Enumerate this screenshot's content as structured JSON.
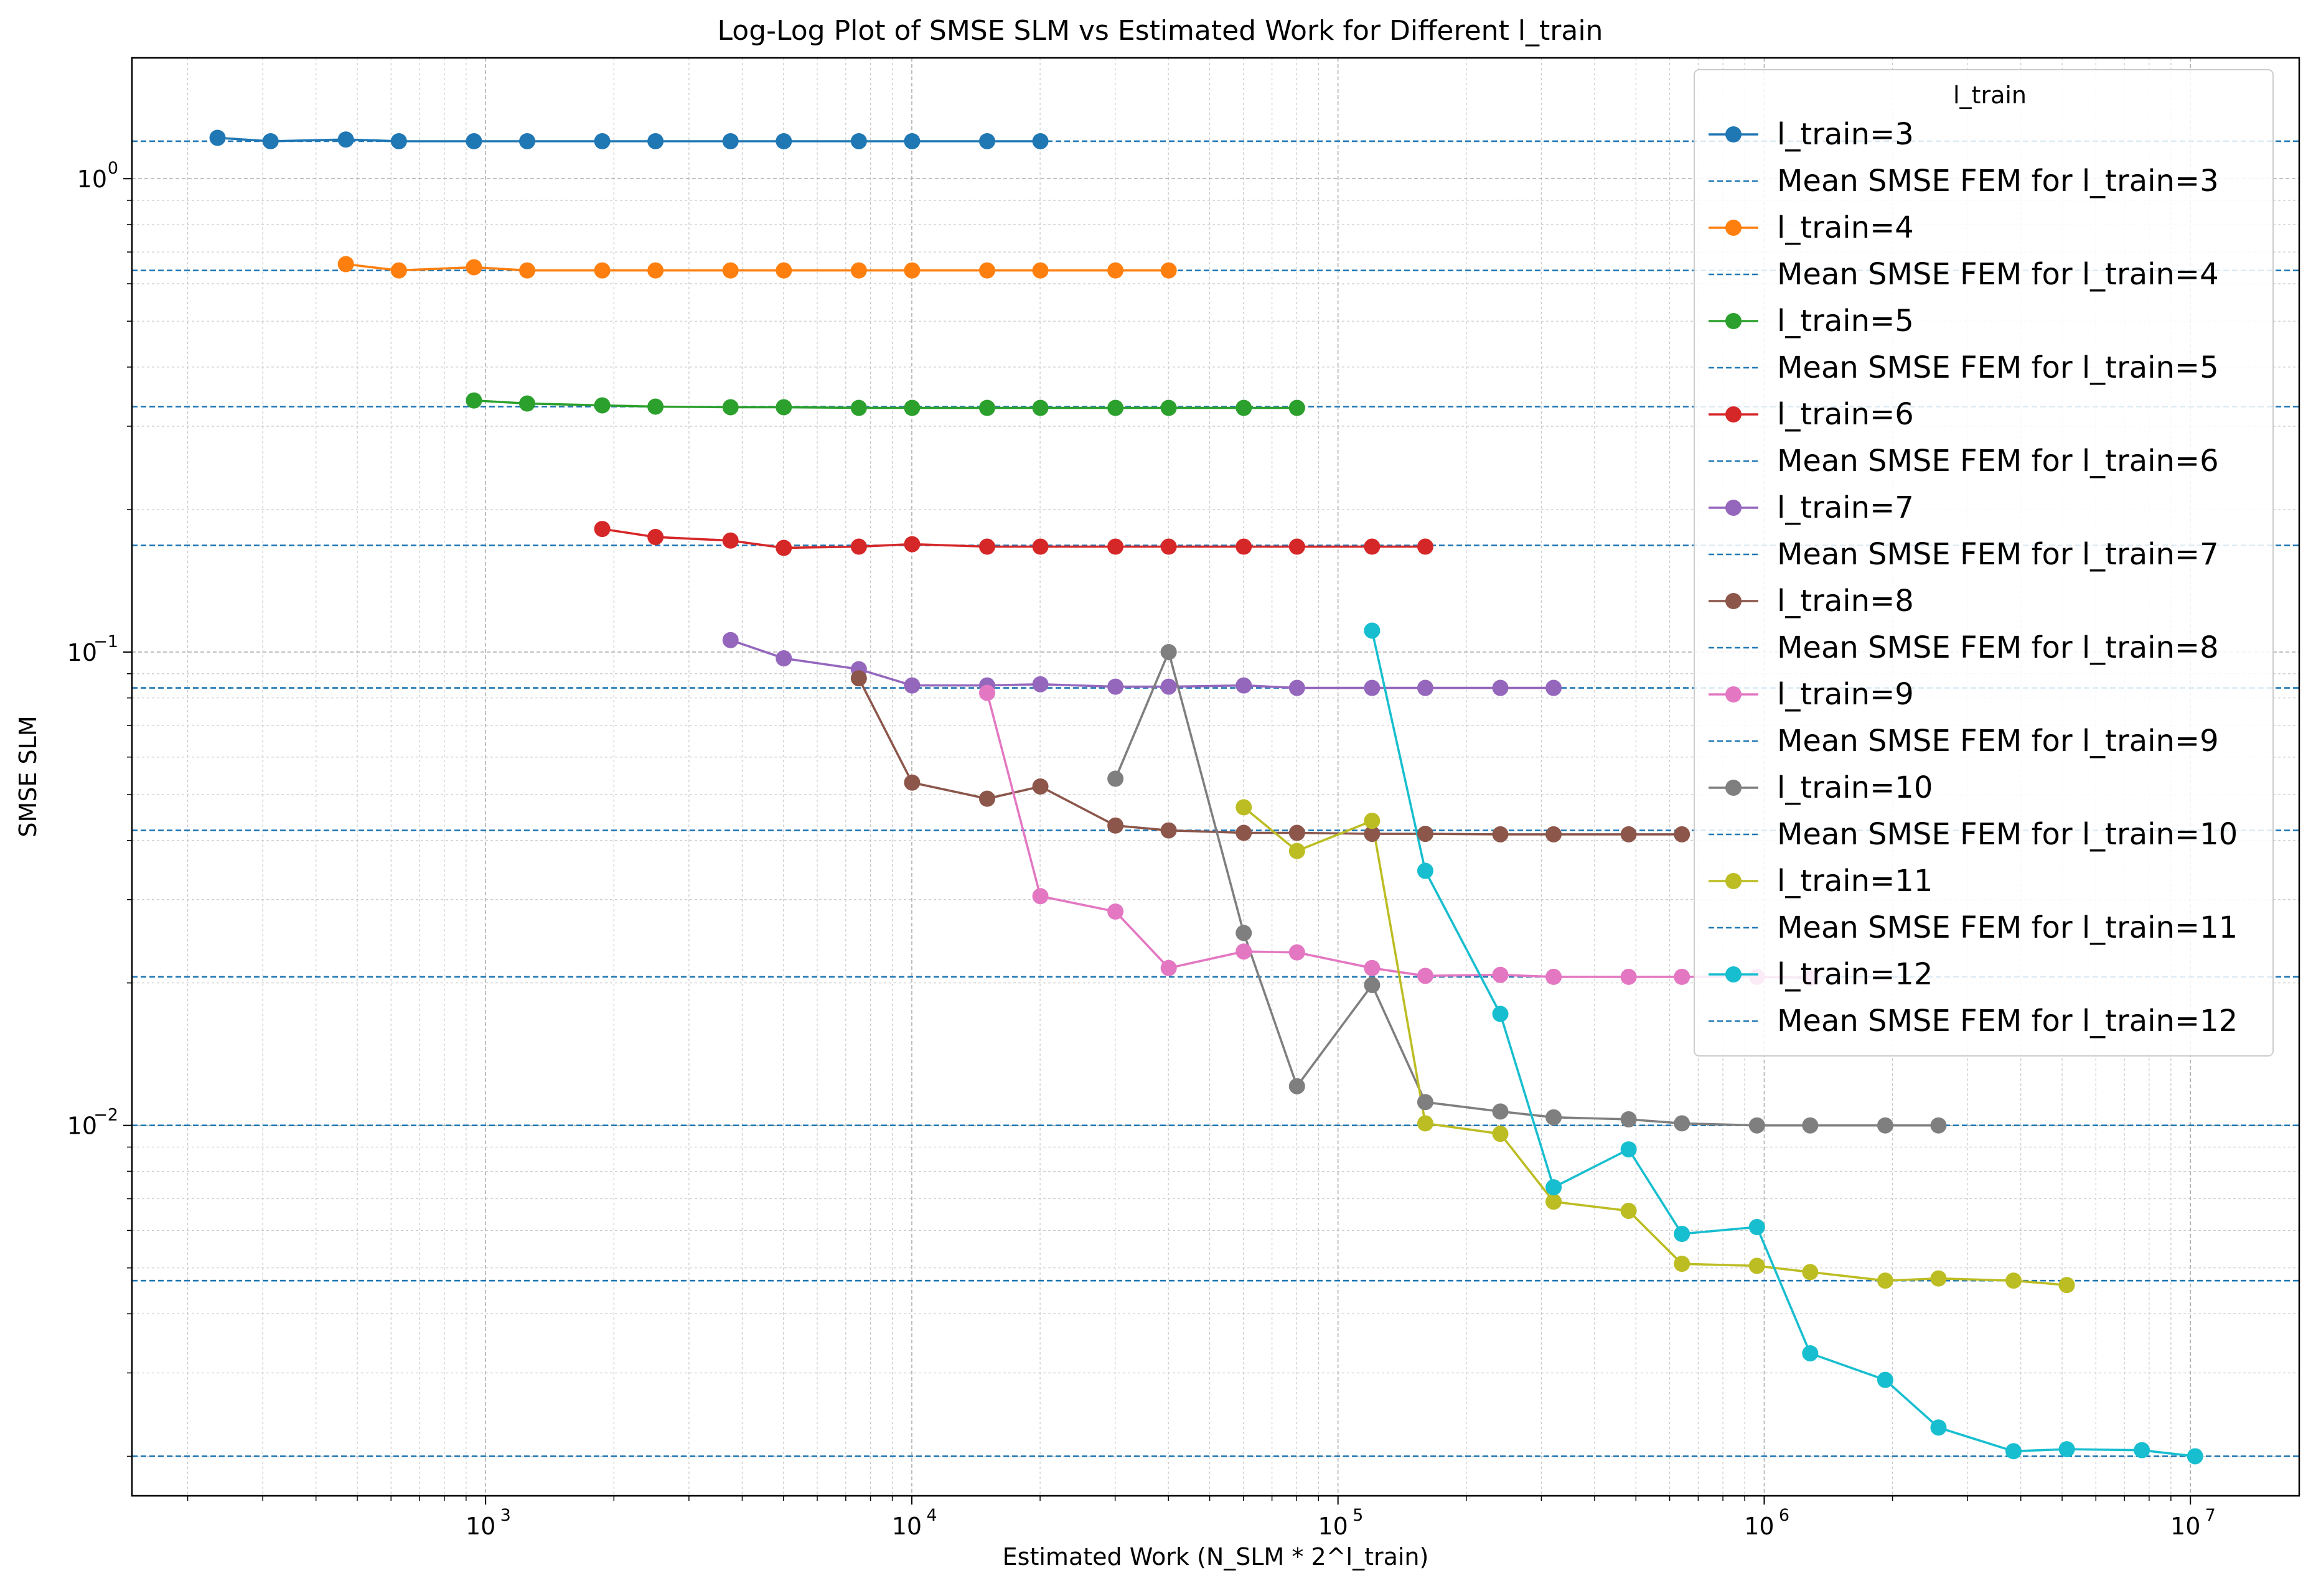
{
  "chart_data": {
    "type": "line",
    "title": "Log-Log Plot of SMSE SLM vs Estimated Work for Different l_train",
    "xlabel": "Estimated Work (N_SLM * 2^l_train)",
    "ylabel": "SMSE SLM",
    "xscale": "log",
    "yscale": "log",
    "xlim": [
      148,
      18000000
    ],
    "ylim": [
      0.00165,
      1.8
    ],
    "x_tick_labels": [
      "10",
      "10",
      "10",
      "10",
      "10"
    ],
    "x_tick_exponents": [
      "3",
      "4",
      "5",
      "6",
      "7"
    ],
    "x_tick_values": [
      1000,
      10000,
      100000,
      1000000,
      10000000
    ],
    "y_tick_labels": [
      "10",
      "10",
      "10"
    ],
    "y_tick_exponents": [
      "0",
      "−1",
      "−2"
    ],
    "y_tick_values": [
      1,
      0.1,
      0.01
    ],
    "grid": true,
    "legend": {
      "title": "l_train",
      "placement": "top-right"
    },
    "series": [
      {
        "name": "l_train=3",
        "color": "#1f77b4",
        "x": [
          235,
          313,
          470,
          626,
          939,
          1252,
          1878,
          2504,
          3756,
          5008,
          7512,
          10016,
          15024,
          20032
        ],
        "y": [
          1.22,
          1.2,
          1.21,
          1.2,
          1.2,
          1.2,
          1.2,
          1.2,
          1.2,
          1.2,
          1.2,
          1.2,
          1.2,
          1.2
        ]
      },
      {
        "name": "Mean SMSE FEM for l_train=3",
        "color": "#1f77b4",
        "mean": 1.2
      },
      {
        "name": "l_train=4",
        "color": "#ff7f0e",
        "x": [
          470,
          626,
          939,
          1252,
          1878,
          2504,
          3756,
          5008,
          7512,
          10016,
          15024,
          20032,
          30048,
          40064
        ],
        "y": [
          0.66,
          0.64,
          0.65,
          0.64,
          0.64,
          0.64,
          0.64,
          0.64,
          0.64,
          0.64,
          0.64,
          0.64,
          0.64,
          0.64
        ]
      },
      {
        "name": "Mean SMSE FEM for l_train=4",
        "color": "#1f77b4",
        "mean": 0.64
      },
      {
        "name": "l_train=5",
        "color": "#2ca02c",
        "x": [
          939,
          1252,
          1878,
          2504,
          3756,
          5008,
          7512,
          10016,
          15024,
          20032,
          30048,
          40064,
          60096,
          80128
        ],
        "y": [
          0.34,
          0.335,
          0.332,
          0.33,
          0.329,
          0.329,
          0.328,
          0.328,
          0.328,
          0.328,
          0.328,
          0.328,
          0.328,
          0.328
        ]
      },
      {
        "name": "Mean SMSE FEM for l_train=5",
        "color": "#1f77b4",
        "mean": 0.33
      },
      {
        "name": "l_train=6",
        "color": "#d62728",
        "x": [
          1878,
          2504,
          3756,
          5008,
          7512,
          10016,
          15024,
          20032,
          30048,
          40064,
          60096,
          80128,
          120192,
          160256
        ],
        "y": [
          0.182,
          0.175,
          0.172,
          0.166,
          0.167,
          0.169,
          0.167,
          0.167,
          0.167,
          0.167,
          0.167,
          0.167,
          0.167,
          0.167
        ]
      },
      {
        "name": "Mean SMSE FEM for l_train=6",
        "color": "#1f77b4",
        "mean": 0.168
      },
      {
        "name": "l_train=7",
        "color": "#9467bd",
        "x": [
          3756,
          5008,
          7512,
          10016,
          15024,
          20032,
          30048,
          40064,
          60096,
          80128,
          120192,
          160256,
          240384,
          320512
        ],
        "y": [
          0.106,
          0.097,
          0.092,
          0.085,
          0.085,
          0.0855,
          0.0845,
          0.0845,
          0.085,
          0.084,
          0.084,
          0.084,
          0.084,
          0.084
        ]
      },
      {
        "name": "Mean SMSE FEM for l_train=7",
        "color": "#1f77b4",
        "mean": 0.084
      },
      {
        "name": "l_train=8",
        "color": "#8c564b",
        "x": [
          7512,
          10016,
          15024,
          20032,
          30048,
          40064,
          60096,
          80128,
          120192,
          160256,
          240384,
          320512,
          480768,
          641024
        ],
        "y": [
          0.088,
          0.053,
          0.049,
          0.052,
          0.043,
          0.042,
          0.0415,
          0.0415,
          0.0413,
          0.0413,
          0.0412,
          0.0412,
          0.0412,
          0.0412
        ]
      },
      {
        "name": "Mean SMSE FEM for l_train=8",
        "color": "#1f77b4",
        "mean": 0.042
      },
      {
        "name": "l_train=9",
        "color": "#e377c2",
        "x": [
          15024,
          20032,
          30048,
          40064,
          60096,
          80128,
          120192,
          160256,
          240384,
          320512,
          480768,
          641024,
          961536,
          1282048
        ],
        "y": [
          0.082,
          0.0305,
          0.0283,
          0.0215,
          0.0233,
          0.0232,
          0.0215,
          0.0207,
          0.0208,
          0.0206,
          0.0206,
          0.0206,
          0.0206,
          0.0205
        ]
      },
      {
        "name": "Mean SMSE FEM for l_train=9",
        "color": "#1f77b4",
        "mean": 0.0206
      },
      {
        "name": "l_train=10",
        "color": "#7f7f7f",
        "x": [
          30048,
          40064,
          60096,
          80128,
          120192,
          160256,
          240384,
          320512,
          480768,
          641024,
          961536,
          1282048,
          1923072,
          2564096
        ],
        "y": [
          0.054,
          0.1,
          0.0255,
          0.0121,
          0.0198,
          0.0112,
          0.0107,
          0.0104,
          0.0103,
          0.0101,
          0.01,
          0.01,
          0.01,
          0.01
        ]
      },
      {
        "name": "Mean SMSE FEM for l_train=10",
        "color": "#1f77b4",
        "mean": 0.01
      },
      {
        "name": "l_train=11",
        "color": "#bcbd22",
        "x": [
          60096,
          80128,
          120192,
          160256,
          240384,
          320512,
          480768,
          641024,
          961536,
          1282048,
          1923072,
          2564096,
          3846144,
          5128192
        ],
        "y": [
          0.047,
          0.038,
          0.044,
          0.0101,
          0.0096,
          0.0069,
          0.0066,
          0.0051,
          0.00505,
          0.0049,
          0.0047,
          0.00475,
          0.0047,
          0.0046
        ]
      },
      {
        "name": "Mean SMSE FEM for l_train=11",
        "color": "#1f77b4",
        "mean": 0.0047
      },
      {
        "name": "l_train=12",
        "color": "#17becf",
        "x": [
          120192,
          160256,
          240384,
          320512,
          480768,
          641024,
          961536,
          1282048,
          1923072,
          2564096,
          3846144,
          5128192,
          7692288,
          10256384
        ],
        "y": [
          0.111,
          0.0345,
          0.0172,
          0.0074,
          0.0089,
          0.0059,
          0.0061,
          0.0033,
          0.0029,
          0.0023,
          0.00205,
          0.00207,
          0.00206,
          0.002
        ]
      },
      {
        "name": "Mean SMSE FEM for l_train=12",
        "color": "#1f77b4",
        "mean": 0.002
      }
    ]
  }
}
